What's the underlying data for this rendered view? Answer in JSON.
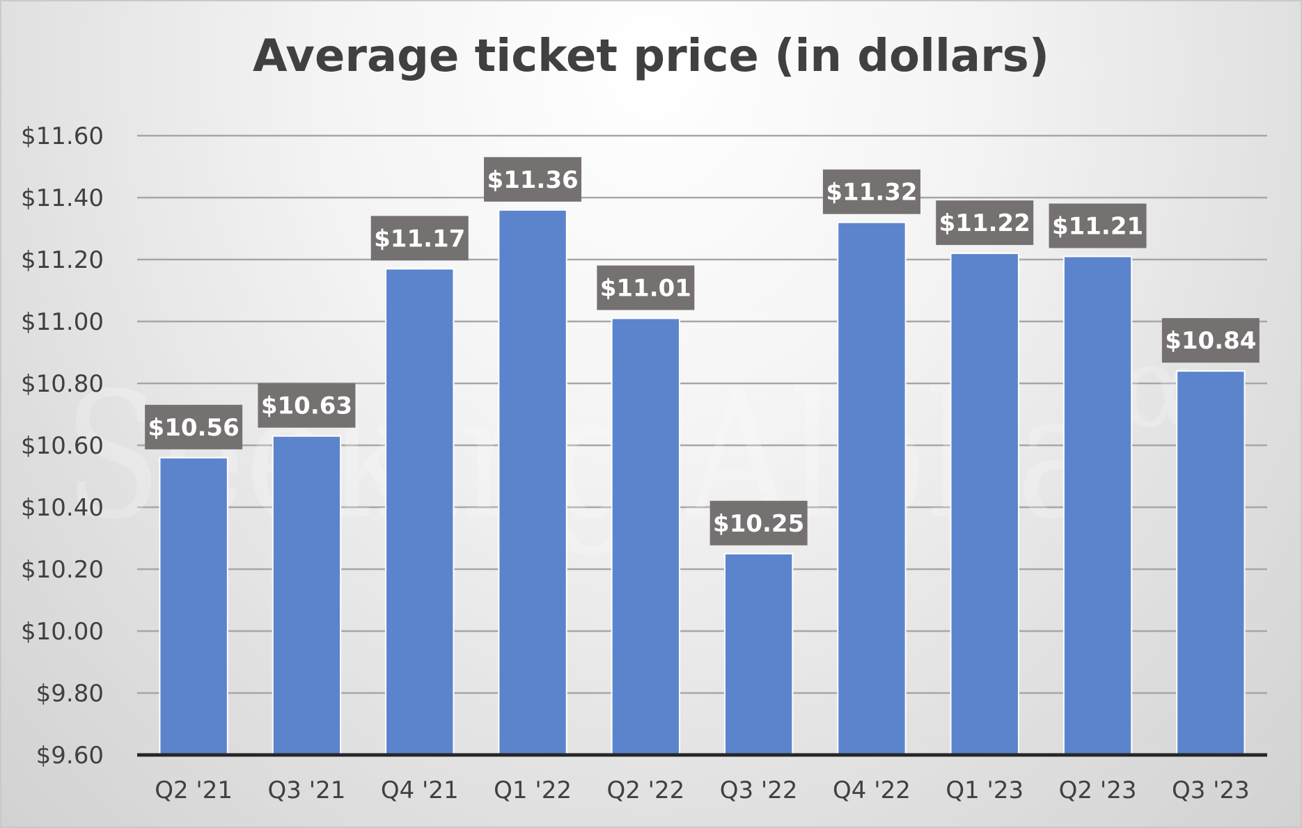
{
  "chart_data": {
    "type": "bar",
    "title": "Average ticket price (in dollars)",
    "categories": [
      "Q2 '21",
      "Q3 '21",
      "Q4 '21",
      "Q1 '22",
      "Q2 '22",
      "Q3 '22",
      "Q4 '22",
      "Q1 '23",
      "Q2 '23",
      "Q3 '23"
    ],
    "values": [
      10.56,
      10.63,
      11.17,
      11.36,
      11.01,
      10.25,
      11.32,
      11.22,
      11.21,
      10.84
    ],
    "data_labels": [
      "$10.56",
      "$10.63",
      "$11.17",
      "$11.36",
      "$11.01",
      "$10.25",
      "$11.32",
      "$11.22",
      "$11.21",
      "$10.84"
    ],
    "ylim": [
      9.6,
      11.6
    ],
    "yticks": [
      9.6,
      9.8,
      10.0,
      10.2,
      10.4,
      10.6,
      10.8,
      11.0,
      11.2,
      11.4,
      11.6
    ],
    "ytick_labels": [
      "$9.60",
      "$9.80",
      "$10.00",
      "$10.20",
      "$10.40",
      "$10.60",
      "$10.80",
      "$11.00",
      "$11.20",
      "$11.40",
      "$11.60"
    ],
    "xlabel": "",
    "ylabel": "",
    "grid": true,
    "legend": "none",
    "colors": {
      "bar": "#5b84cc",
      "bar_edge": "#ffffff",
      "label_bg": "#757171",
      "label_text": "#ffffff",
      "gridline": "#a6a6a6",
      "axis_line": "#262626",
      "text": "#404040"
    }
  },
  "watermark": {
    "text": "Seeking Alpha",
    "symbol": "α"
  }
}
